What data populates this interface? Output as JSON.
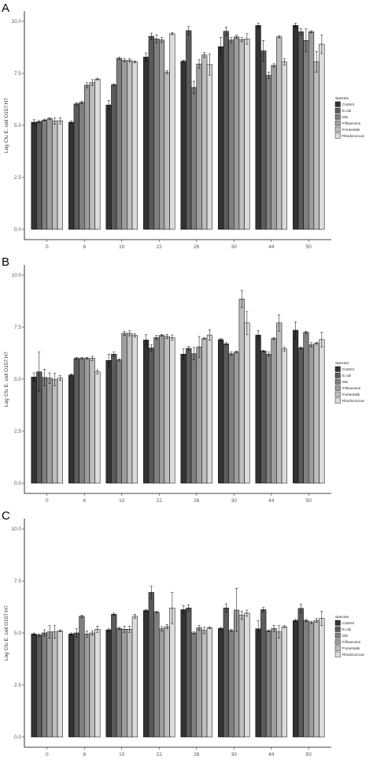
{
  "colors": {
    "Control": "#333333",
    "E.coli": "#5b5b5b",
    "Mix": "#7f7f7f",
    "P.flavecens": "#9d9d9d",
    "P.orientalis": "#bdbdbd",
    "Rhodococcus": "#dcdcdc"
  },
  "chart_data": [
    {
      "panel": "A",
      "type": "bar",
      "ylabel": "Log Cfu E. coli O157:H7",
      "ylim": [
        0,
        10
      ],
      "yticks": [
        "0.0",
        "2.5",
        "5.0",
        "7.5",
        "10.0"
      ],
      "categories": [
        "0",
        "6",
        "10",
        "22",
        "26",
        "30",
        "44",
        "50"
      ],
      "legend": {
        "title": "Species",
        "position": "right",
        "labels": [
          "Control",
          "E.coli",
          "Mix",
          "P.flavecens",
          "P.orientalis",
          "Rhodococcus"
        ]
      },
      "series": [
        {
          "name": "Control",
          "values": [
            5.15,
            5.15,
            5.98,
            8.28,
            8.08,
            8.78,
            9.8,
            9.8
          ],
          "errors": [
            0.12,
            0.05,
            0.22,
            0.2,
            0.05,
            0.45,
            0.12,
            0.1
          ]
        },
        {
          "name": "E.coli",
          "values": [
            5.18,
            6.03,
            6.95,
            9.28,
            9.55,
            9.52,
            8.58,
            9.5
          ],
          "errors": [
            0.05,
            0.05,
            0.05,
            0.15,
            0.2,
            0.2,
            0.5,
            0.15
          ]
        },
        {
          "name": "Mix",
          "values": [
            5.25,
            6.1,
            8.22,
            9.15,
            6.82,
            9.1,
            7.4,
            9.08
          ],
          "errors": [
            0.05,
            0.05,
            0.05,
            0.2,
            0.3,
            0.12,
            0.15,
            0.55
          ]
        },
        {
          "name": "P.flavecens",
          "values": [
            5.32,
            6.93,
            8.12,
            9.1,
            7.95,
            9.25,
            7.88,
            9.5
          ],
          "errors": [
            0.05,
            0.12,
            0.08,
            0.12,
            0.2,
            0.08,
            0.08,
            0.05
          ]
        },
        {
          "name": "P.orientalis",
          "values": [
            5.2,
            7.05,
            8.12,
            7.55,
            8.38,
            9.12,
            9.25,
            8.05
          ],
          "errors": [
            0.15,
            0.15,
            0.08,
            0.08,
            0.12,
            0.1,
            0.05,
            0.5
          ]
        },
        {
          "name": "Rhodococcus",
          "values": [
            5.22,
            7.22,
            8.05,
            9.4,
            7.92,
            9.15,
            8.05,
            8.9
          ],
          "errors": [
            0.15,
            0.05,
            0.05,
            0.05,
            0.5,
            0.25,
            0.15,
            0.45
          ]
        }
      ]
    },
    {
      "panel": "B",
      "type": "bar",
      "ylabel": "Log Cfu E. coli O157:H7",
      "ylim": [
        0,
        10
      ],
      "yticks": [
        "0.0",
        "2.5",
        "5.0",
        "7.5",
        "10.0"
      ],
      "categories": [
        "0",
        "6",
        "10",
        "22",
        "26",
        "30",
        "44",
        "50"
      ],
      "legend": {
        "title": "Species",
        "position": "right",
        "labels": [
          "Control",
          "E.coli",
          "Mix",
          "P.flavecens",
          "P.orientalis",
          "Rhodococcus"
        ]
      },
      "series": [
        {
          "name": "Control",
          "values": [
            5.1,
            5.2,
            5.9,
            6.88,
            6.2,
            6.9,
            7.12,
            7.35
          ],
          "errors": [
            0.2,
            0.05,
            0.3,
            0.25,
            0.25,
            0.05,
            0.2,
            0.4
          ]
        },
        {
          "name": "E.coli",
          "values": [
            5.35,
            6.0,
            6.2,
            6.5,
            6.48,
            6.7,
            6.35,
            6.5
          ],
          "errors": [
            0.95,
            0.05,
            0.1,
            0.15,
            0.1,
            0.05,
            0.05,
            0.05
          ]
        },
        {
          "name": "Mix",
          "values": [
            5.08,
            6.0,
            5.92,
            7.0,
            6.22,
            6.22,
            6.2,
            7.25
          ],
          "errors": [
            0.4,
            0.05,
            0.05,
            0.1,
            0.3,
            0.08,
            0.1,
            0.05
          ]
        },
        {
          "name": "P.flavecens",
          "values": [
            5.05,
            6.0,
            7.2,
            7.1,
            6.55,
            6.3,
            6.95,
            6.65
          ],
          "errors": [
            0.25,
            0.05,
            0.1,
            0.05,
            0.5,
            0.05,
            0.05,
            0.1
          ]
        },
        {
          "name": "P.orientalis",
          "values": [
            4.98,
            6.0,
            7.2,
            7.05,
            6.95,
            8.85,
            7.7,
            6.72
          ],
          "errors": [
            0.3,
            0.1,
            0.12,
            0.1,
            0.05,
            0.4,
            0.4,
            0.05
          ]
        },
        {
          "name": "Rhodococcus",
          "values": [
            5.05,
            5.35,
            7.1,
            7.0,
            7.12,
            7.7,
            6.45,
            6.9
          ],
          "errors": [
            0.12,
            0.1,
            0.08,
            0.12,
            0.25,
            0.55,
            0.1,
            0.35
          ]
        }
      ]
    },
    {
      "panel": "C",
      "type": "bar",
      "ylabel": "Log Cfu E. coli O157:H7",
      "ylim": [
        0,
        10
      ],
      "yticks": [
        "0.0",
        "2.5",
        "5.0",
        "7.5",
        "10.0"
      ],
      "categories": [
        "0",
        "6",
        "10",
        "22",
        "26",
        "30",
        "44",
        "50"
      ],
      "legend": {
        "title": "Species",
        "position": "right",
        "labels": [
          "Control",
          "E.coli",
          "Mix",
          "P.flavecens",
          "P.orientalis",
          "Rhodococcus"
        ]
      },
      "series": [
        {
          "name": "Control",
          "values": [
            4.95,
            4.95,
            5.15,
            6.08,
            6.12,
            5.22,
            5.2,
            5.6
          ],
          "errors": [
            0.05,
            0.05,
            0.05,
            0.05,
            0.2,
            0.05,
            0.4,
            0.05
          ]
        },
        {
          "name": "E.coli",
          "values": [
            4.9,
            5.0,
            5.9,
            6.95,
            6.2,
            6.2,
            6.12,
            6.18
          ],
          "errors": [
            0.05,
            0.2,
            0.05,
            0.3,
            0.15,
            0.2,
            0.1,
            0.2
          ]
        },
        {
          "name": "Mix",
          "values": [
            5.0,
            5.8,
            5.22,
            6.0,
            5.0,
            5.12,
            5.1,
            5.6
          ],
          "errors": [
            0.15,
            0.05,
            0.05,
            0.05,
            0.05,
            0.05,
            0.05,
            0.05
          ]
        },
        {
          "name": "P.flavecens",
          "values": [
            5.05,
            4.95,
            5.18,
            5.2,
            5.25,
            6.1,
            5.22,
            5.5
          ],
          "errors": [
            0.3,
            0.15,
            0.15,
            0.1,
            0.12,
            1.05,
            0.15,
            0.05
          ]
        },
        {
          "name": "P.orientalis",
          "values": [
            5.05,
            5.0,
            5.18,
            5.3,
            5.12,
            5.85,
            5.05,
            5.6
          ],
          "errors": [
            0.3,
            0.1,
            0.15,
            0.1,
            0.15,
            0.2,
            0.3,
            0.1
          ]
        },
        {
          "name": "Rhodococcus",
          "values": [
            5.1,
            5.18,
            5.8,
            6.2,
            5.25,
            5.95,
            5.3,
            5.7
          ],
          "errors": [
            0.05,
            0.15,
            0.1,
            0.75,
            0.05,
            0.15,
            0.05,
            0.35
          ]
        }
      ]
    }
  ]
}
